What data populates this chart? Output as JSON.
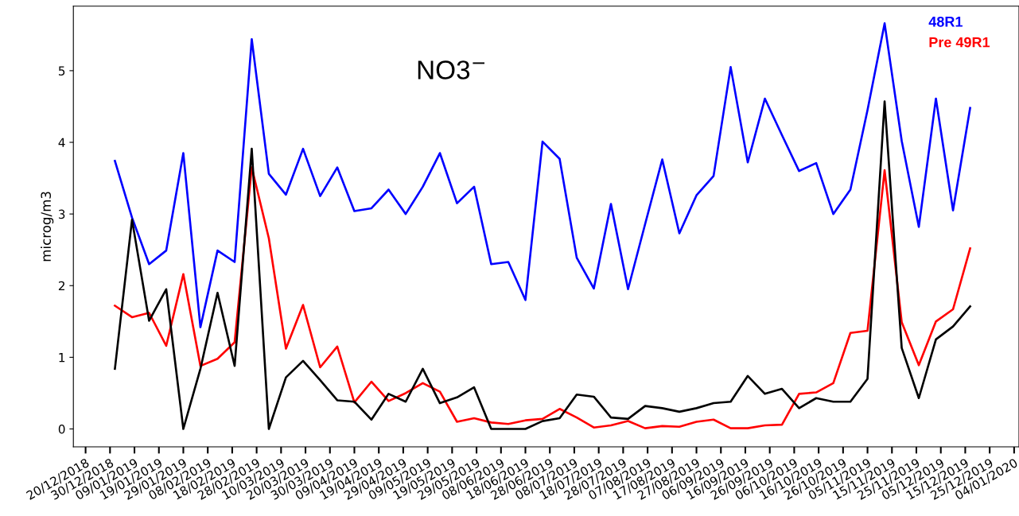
{
  "chart_data": {
    "type": "line",
    "title": "NO3$^{−}$",
    "ylabel": "microg/m3",
    "x": [
      "2019-01-01",
      "2019-01-08",
      "2019-01-15",
      "2019-01-22",
      "2019-01-29",
      "2019-02-05",
      "2019-02-12",
      "2019-02-19",
      "2019-02-26",
      "2019-03-05",
      "2019-03-12",
      "2019-03-19",
      "2019-03-26",
      "2019-04-02",
      "2019-04-09",
      "2019-04-16",
      "2019-04-23",
      "2019-04-30",
      "2019-05-07",
      "2019-05-14",
      "2019-05-21",
      "2019-05-28",
      "2019-06-04",
      "2019-06-11",
      "2019-06-18",
      "2019-06-25",
      "2019-07-02",
      "2019-07-09",
      "2019-07-16",
      "2019-07-23",
      "2019-07-30",
      "2019-08-06",
      "2019-08-13",
      "2019-08-20",
      "2019-08-27",
      "2019-09-03",
      "2019-09-10",
      "2019-09-17",
      "2019-09-24",
      "2019-10-01",
      "2019-10-08",
      "2019-10-15",
      "2019-10-22",
      "2019-10-29",
      "2019-11-05",
      "2019-11-12",
      "2019-11-19",
      "2019-11-26",
      "2019-12-03",
      "2019-12-10",
      "2019-12-17"
    ],
    "series": [
      {
        "name": "48R1",
        "color": "#0000ff",
        "values": [
          3.74,
          2.95,
          2.3,
          2.49,
          3.85,
          1.42,
          2.49,
          2.33,
          5.44,
          3.56,
          3.27,
          3.91,
          3.25,
          3.65,
          3.04,
          3.08,
          3.34,
          3.0,
          3.38,
          3.85,
          3.15,
          3.38,
          2.3,
          2.33,
          1.8,
          4.01,
          3.77,
          2.39,
          1.96,
          3.14,
          1.95,
          2.86,
          3.76,
          2.73,
          3.26,
          3.53,
          5.05,
          3.72,
          4.61,
          4.1,
          3.6,
          3.71,
          3.0,
          3.34,
          4.45,
          5.66,
          4.02,
          2.82,
          4.61,
          3.05,
          4.48
        ]
      },
      {
        "name": "Pre 49R1",
        "color": "#ff0000",
        "values": [
          1.72,
          1.56,
          1.62,
          1.16,
          2.16,
          0.88,
          0.98,
          1.21,
          3.65,
          2.66,
          1.12,
          1.73,
          0.86,
          1.15,
          0.37,
          0.66,
          0.39,
          0.5,
          0.64,
          0.52,
          0.1,
          0.15,
          0.09,
          0.07,
          0.12,
          0.14,
          0.28,
          0.16,
          0.02,
          0.05,
          0.11,
          0.01,
          0.04,
          0.03,
          0.1,
          0.13,
          0.01,
          0.01,
          0.05,
          0.06,
          0.49,
          0.51,
          0.64,
          1.34,
          1.37,
          3.61,
          1.49,
          0.89,
          1.5,
          1.67,
          2.52
        ]
      },
      {
        "color": "#000000",
        "values": [
          0.84,
          2.92,
          1.51,
          1.95,
          0.0,
          0.84,
          1.9,
          0.88,
          3.91,
          0.0,
          0.72,
          0.95,
          0.68,
          0.4,
          0.38,
          0.13,
          0.49,
          0.38,
          0.84,
          0.36,
          0.44,
          0.58,
          0.0,
          0.0,
          0.0,
          0.11,
          0.15,
          0.48,
          0.45,
          0.16,
          0.14,
          0.32,
          0.29,
          0.24,
          0.29,
          0.36,
          0.38,
          0.74,
          0.49,
          0.56,
          0.29,
          0.43,
          0.38,
          0.38,
          0.7,
          4.57,
          1.13,
          0.43,
          1.25,
          1.43,
          1.71
        ]
      }
    ],
    "xlim": [
      "2018-12-15",
      "2020-01-06"
    ],
    "xticks": [
      {
        "value": "2018-12-20",
        "label": "20/12/2018"
      },
      {
        "value": "2018-12-30",
        "label": "30/12/2018"
      },
      {
        "value": "2019-01-09",
        "label": "09/01/2019"
      },
      {
        "value": "2019-01-19",
        "label": "19/01/2019"
      },
      {
        "value": "2019-01-29",
        "label": "29/01/2019"
      },
      {
        "value": "2019-02-08",
        "label": "08/02/2019"
      },
      {
        "value": "2019-02-18",
        "label": "18/02/2019"
      },
      {
        "value": "2019-02-28",
        "label": "28/02/2019"
      },
      {
        "value": "2019-03-10",
        "label": "10/03/2019"
      },
      {
        "value": "2019-03-20",
        "label": "20/03/2019"
      },
      {
        "value": "2019-03-30",
        "label": "30/03/2019"
      },
      {
        "value": "2019-04-09",
        "label": "09/04/2019"
      },
      {
        "value": "2019-04-19",
        "label": "19/04/2019"
      },
      {
        "value": "2019-04-29",
        "label": "29/04/2019"
      },
      {
        "value": "2019-05-09",
        "label": "09/05/2019"
      },
      {
        "value": "2019-05-19",
        "label": "19/05/2019"
      },
      {
        "value": "2019-05-29",
        "label": "29/05/2019"
      },
      {
        "value": "2019-06-08",
        "label": "08/06/2019"
      },
      {
        "value": "2019-06-18",
        "label": "18/06/2019"
      },
      {
        "value": "2019-06-28",
        "label": "28/06/2019"
      },
      {
        "value": "2019-07-08",
        "label": "08/07/2019"
      },
      {
        "value": "2019-07-18",
        "label": "18/07/2019"
      },
      {
        "value": "2019-07-28",
        "label": "28/07/2019"
      },
      {
        "value": "2019-08-07",
        "label": "07/08/2019"
      },
      {
        "value": "2019-08-17",
        "label": "17/08/2019"
      },
      {
        "value": "2019-08-27",
        "label": "27/08/2019"
      },
      {
        "value": "2019-09-06",
        "label": "06/09/2019"
      },
      {
        "value": "2019-09-16",
        "label": "16/09/2019"
      },
      {
        "value": "2019-09-26",
        "label": "26/09/2019"
      },
      {
        "value": "2019-10-06",
        "label": "06/10/2019"
      },
      {
        "value": "2019-10-16",
        "label": "16/10/2019"
      },
      {
        "value": "2019-10-26",
        "label": "26/10/2019"
      },
      {
        "value": "2019-11-05",
        "label": "05/11/2019"
      },
      {
        "value": "2019-11-15",
        "label": "15/11/2019"
      },
      {
        "value": "2019-11-25",
        "label": "25/11/2019"
      },
      {
        "value": "2019-12-05",
        "label": "05/12/2019"
      },
      {
        "value": "2019-12-15",
        "label": "15/12/2019"
      },
      {
        "value": "2019-12-25",
        "label": "25/12/2019"
      },
      {
        "value": "2020-01-04",
        "label": "04/01/2020"
      }
    ],
    "ylim": [
      -0.25,
      5.9
    ],
    "yticks": [
      0,
      1,
      2,
      3,
      4,
      5
    ],
    "grid": false,
    "legend": "top right",
    "marker": "none",
    "line_style": "solid"
  }
}
